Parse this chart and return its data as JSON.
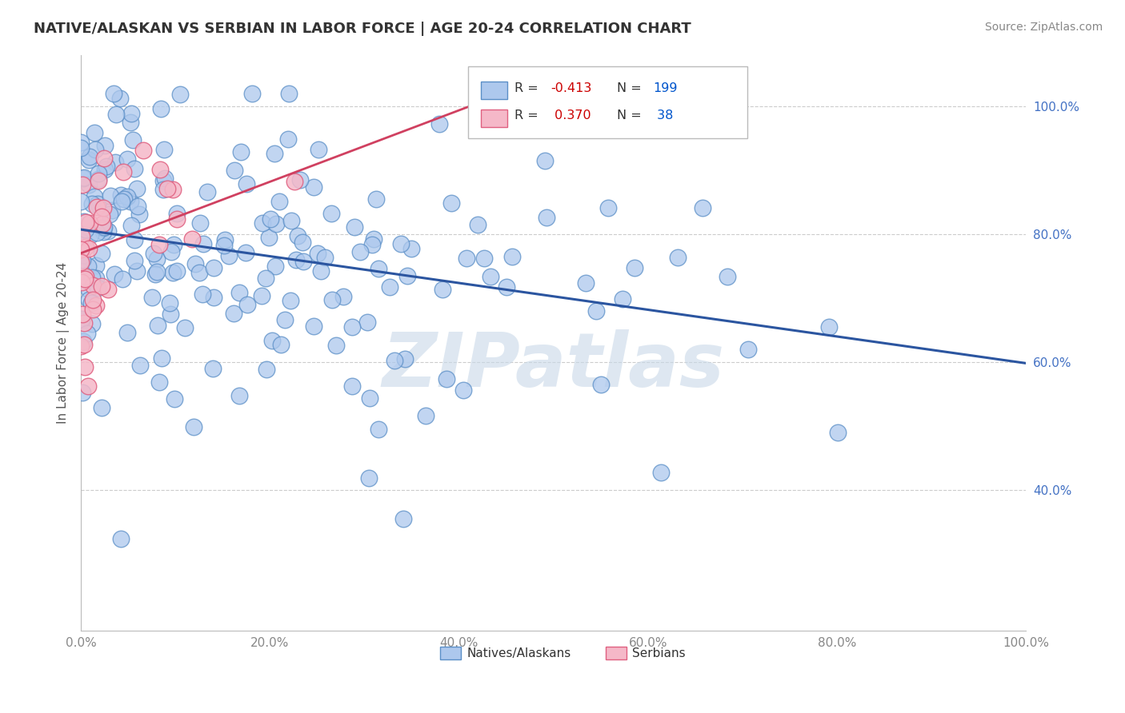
{
  "title": "NATIVE/ALASKAN VS SERBIAN IN LABOR FORCE | AGE 20-24 CORRELATION CHART",
  "source": "Source: ZipAtlas.com",
  "ylabel": "In Labor Force | Age 20-24",
  "xlim": [
    0,
    1.0
  ],
  "ylim": [
    0.18,
    1.08
  ],
  "xticks": [
    0.0,
    0.2,
    0.4,
    0.6,
    0.8,
    1.0
  ],
  "yticks": [
    0.4,
    0.6,
    0.8,
    1.0
  ],
  "xticklabels": [
    "0.0%",
    "20.0%",
    "40.0%",
    "60.0%",
    "80.0%",
    "100.0%"
  ],
  "yticklabels_right": [
    "40.0%",
    "60.0%",
    "80.0%",
    "100.0%"
  ],
  "blue_R": "-0.413",
  "blue_N": "199",
  "pink_R": "0.370",
  "pink_N": "38",
  "blue_color": "#adc8ed",
  "blue_edge": "#5b8fc7",
  "pink_color": "#f5b8c8",
  "pink_edge": "#e06080",
  "blue_line_color": "#2b55a0",
  "pink_line_color": "#d04060",
  "watermark_text": "ZIPatlas",
  "watermark_color": "#c8d8e8",
  "background": "#ffffff",
  "grid_color": "#cccccc",
  "title_color": "#333333",
  "tick_color_blue": "#4472c4",
  "tick_color_x": "#888888",
  "legend_border": "#bbbbbb",
  "legend_blue_R_color": "#cc0000",
  "legend_blue_N_color": "#0000cc",
  "legend_pink_R_color": "#cc0000",
  "legend_pink_N_color": "#0000cc",
  "blue_line_x0": 0.0,
  "blue_line_x1": 1.0,
  "blue_line_y0": 0.807,
  "blue_line_y1": 0.598,
  "pink_line_x0": 0.0,
  "pink_line_x1": 0.43,
  "pink_line_y0": 0.77,
  "pink_line_y1": 1.01
}
